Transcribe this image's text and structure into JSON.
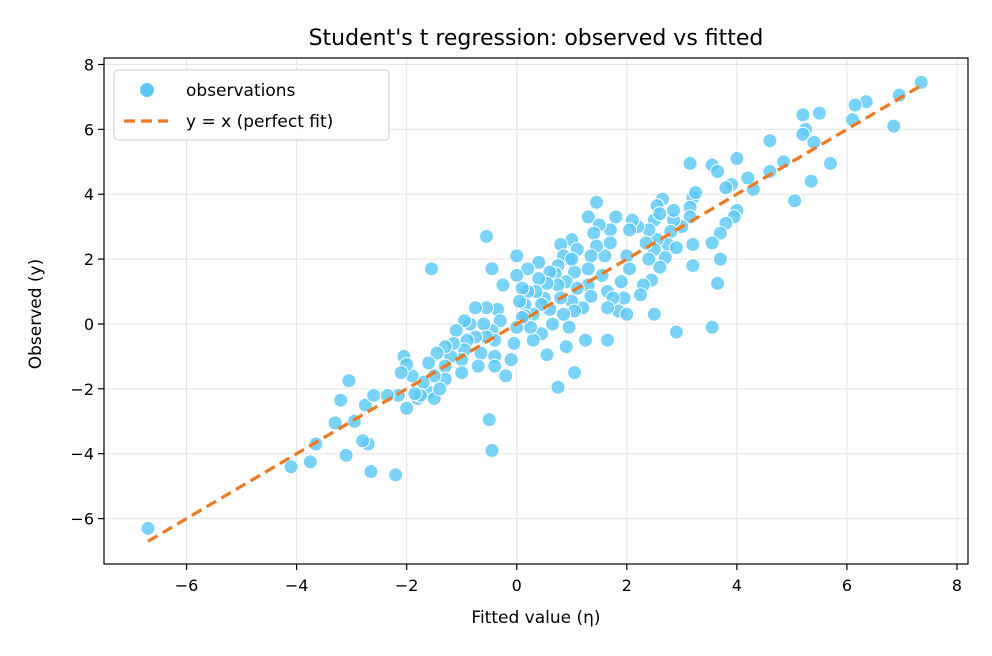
{
  "colors": {
    "points": "#5bc8f5",
    "point_edge": "#ffffff",
    "line": "#f07820",
    "grid": "#e4e4e4",
    "axis": "#000000"
  },
  "chart_data": {
    "type": "scatter",
    "title": "Student's t regression: observed vs fitted",
    "xlabel": "Fitted value (η)",
    "ylabel": "Observed (y)",
    "xlim": [
      -7.5,
      8.2
    ],
    "ylim": [
      -7.4,
      8.2
    ],
    "xticks": [
      -6,
      -4,
      -2,
      0,
      2,
      4,
      6,
      8
    ],
    "yticks": [
      -6,
      -4,
      -2,
      0,
      2,
      4,
      6,
      8
    ],
    "xtick_labels": [
      "−6",
      "−4",
      "−2",
      "0",
      "2",
      "4",
      "6",
      "8"
    ],
    "ytick_labels": [
      "−6",
      "−4",
      "−2",
      "0",
      "2",
      "4",
      "6",
      "8"
    ],
    "grid": true,
    "legend_position": "top-left",
    "series": [
      {
        "name": "observations",
        "kind": "scatter",
        "points": [
          [
            -6.7,
            -6.3
          ],
          [
            7.35,
            7.45
          ],
          [
            6.95,
            7.05
          ],
          [
            6.35,
            6.85
          ],
          [
            6.15,
            6.75
          ],
          [
            6.1,
            6.3
          ],
          [
            6.85,
            6.1
          ],
          [
            5.5,
            6.5
          ],
          [
            5.2,
            6.45
          ],
          [
            5.25,
            6.0
          ],
          [
            5.2,
            5.85
          ],
          [
            5.4,
            5.6
          ],
          [
            4.6,
            5.65
          ],
          [
            5.7,
            4.95
          ],
          [
            4.85,
            5.0
          ],
          [
            5.35,
            4.4
          ],
          [
            5.05,
            3.8
          ],
          [
            4.0,
            5.1
          ],
          [
            4.6,
            4.7
          ],
          [
            4.3,
            4.15
          ],
          [
            4.2,
            4.5
          ],
          [
            3.9,
            4.3
          ],
          [
            3.8,
            4.2
          ],
          [
            4.0,
            3.5
          ],
          [
            3.95,
            3.3
          ],
          [
            3.8,
            3.1
          ],
          [
            3.7,
            2.8
          ],
          [
            3.55,
            2.5
          ],
          [
            3.7,
            2.0
          ],
          [
            3.65,
            1.25
          ],
          [
            3.55,
            -0.1
          ],
          [
            3.55,
            4.9
          ],
          [
            3.65,
            4.7
          ],
          [
            3.15,
            4.95
          ],
          [
            3.2,
            3.9
          ],
          [
            3.25,
            4.05
          ],
          [
            3.15,
            3.6
          ],
          [
            3.15,
            3.3
          ],
          [
            3.2,
            2.45
          ],
          [
            3.2,
            1.8
          ],
          [
            3.0,
            3.0
          ],
          [
            2.85,
            3.2
          ],
          [
            2.85,
            3.5
          ],
          [
            2.8,
            2.85
          ],
          [
            2.75,
            2.45
          ],
          [
            2.7,
            2.05
          ],
          [
            2.9,
            2.35
          ],
          [
            2.9,
            -0.25
          ],
          [
            2.65,
            3.85
          ],
          [
            2.55,
            3.65
          ],
          [
            2.5,
            3.2
          ],
          [
            2.55,
            2.6
          ],
          [
            2.5,
            2.3
          ],
          [
            2.6,
            1.75
          ],
          [
            2.45,
            1.35
          ],
          [
            2.4,
            2.9
          ],
          [
            2.35,
            2.5
          ],
          [
            2.3,
            1.2
          ],
          [
            2.25,
            0.9
          ],
          [
            2.5,
            0.3
          ],
          [
            2.2,
            3.0
          ],
          [
            2.1,
            3.2
          ],
          [
            2.05,
            2.9
          ],
          [
            2.0,
            2.1
          ],
          [
            2.05,
            1.7
          ],
          [
            1.9,
            1.3
          ],
          [
            1.95,
            0.8
          ],
          [
            1.85,
            0.4
          ],
          [
            2.0,
            0.3
          ],
          [
            1.8,
            3.3
          ],
          [
            1.7,
            2.9
          ],
          [
            1.7,
            2.5
          ],
          [
            1.6,
            2.1
          ],
          [
            1.55,
            1.5
          ],
          [
            1.65,
            1.0
          ],
          [
            1.75,
            0.8
          ],
          [
            1.65,
            0.5
          ],
          [
            1.65,
            -0.5
          ],
          [
            1.45,
            3.75
          ],
          [
            1.3,
            3.3
          ],
          [
            1.5,
            3.05
          ],
          [
            1.4,
            2.8
          ],
          [
            1.45,
            2.4
          ],
          [
            1.35,
            2.1
          ],
          [
            1.3,
            1.7
          ],
          [
            1.3,
            1.2
          ],
          [
            1.35,
            0.85
          ],
          [
            1.2,
            0.5
          ],
          [
            1.25,
            -0.5
          ],
          [
            1.0,
            2.6
          ],
          [
            1.1,
            2.3
          ],
          [
            0.95,
            2.0
          ],
          [
            1.05,
            1.6
          ],
          [
            0.9,
            1.3
          ],
          [
            1.1,
            1.1
          ],
          [
            1.0,
            0.7
          ],
          [
            1.05,
            0.4
          ],
          [
            0.95,
            -0.1
          ],
          [
            1.05,
            -1.5
          ],
          [
            0.8,
            2.45
          ],
          [
            0.85,
            2.1
          ],
          [
            0.75,
            1.8
          ],
          [
            0.7,
            1.55
          ],
          [
            0.75,
            1.2
          ],
          [
            0.8,
            0.8
          ],
          [
            0.85,
            0.3
          ],
          [
            0.9,
            -0.7
          ],
          [
            0.75,
            -1.95
          ],
          [
            0.6,
            1.6
          ],
          [
            0.55,
            1.25
          ],
          [
            0.5,
            0.8
          ],
          [
            0.6,
            0.45
          ],
          [
            0.65,
            0.0
          ],
          [
            0.4,
            1.9
          ],
          [
            0.4,
            1.4
          ],
          [
            0.35,
            1.0
          ],
          [
            0.45,
            0.6
          ],
          [
            0.3,
            0.3
          ],
          [
            0.45,
            -0.3
          ],
          [
            0.55,
            -0.95
          ],
          [
            0.3,
            -0.5
          ],
          [
            0.2,
            1.0
          ],
          [
            0.15,
            0.6
          ],
          [
            0.15,
            0.25
          ],
          [
            0.25,
            -0.1
          ],
          [
            0.2,
            1.7
          ],
          [
            0.0,
            2.1
          ],
          [
            0.0,
            1.5
          ],
          [
            0.1,
            1.1
          ],
          [
            0.05,
            0.7
          ],
          [
            0.1,
            0.2
          ],
          [
            0.0,
            -0.1
          ],
          [
            -0.05,
            -0.6
          ],
          [
            -0.1,
            -1.1
          ],
          [
            -0.2,
            -1.6
          ],
          [
            -0.25,
            1.2
          ],
          [
            -0.35,
            0.45
          ],
          [
            -0.3,
            0.1
          ],
          [
            -0.45,
            -0.2
          ],
          [
            -0.4,
            -0.5
          ],
          [
            -0.4,
            -1.0
          ],
          [
            -0.4,
            -1.3
          ],
          [
            -0.55,
            2.7
          ],
          [
            -0.45,
            1.7
          ],
          [
            -0.55,
            0.5
          ],
          [
            -0.6,
            0.0
          ],
          [
            -0.55,
            -0.4
          ],
          [
            -0.65,
            -0.9
          ],
          [
            -0.75,
            -0.4
          ],
          [
            -0.7,
            -1.3
          ],
          [
            -0.75,
            0.5
          ],
          [
            -0.85,
            0.0
          ],
          [
            -0.95,
            0.1
          ],
          [
            -0.9,
            -0.5
          ],
          [
            -0.95,
            -0.8
          ],
          [
            -1.0,
            -1.1
          ],
          [
            -1.0,
            -1.5
          ],
          [
            -1.1,
            -0.2
          ],
          [
            -1.15,
            -0.6
          ],
          [
            -1.2,
            -1.0
          ],
          [
            -1.3,
            -1.3
          ],
          [
            -1.3,
            -0.7
          ],
          [
            -1.3,
            -1.7
          ],
          [
            -1.45,
            -0.9
          ],
          [
            -1.5,
            -1.6
          ],
          [
            -1.6,
            -1.2
          ],
          [
            -1.6,
            -2.1
          ],
          [
            -1.7,
            -1.8
          ],
          [
            -1.5,
            -2.3
          ],
          [
            -1.55,
            1.7
          ],
          [
            -1.4,
            -2.0
          ],
          [
            -1.8,
            -2.3
          ],
          [
            -1.75,
            -2.2
          ],
          [
            -1.9,
            -1.6
          ],
          [
            -1.85,
            -2.15
          ],
          [
            -2.0,
            -2.6
          ],
          [
            -2.05,
            -1.0
          ],
          [
            -2.0,
            -1.25
          ],
          [
            -2.1,
            -1.5
          ],
          [
            -2.15,
            -2.2
          ],
          [
            -2.2,
            -4.65
          ],
          [
            -2.35,
            -2.2
          ],
          [
            -2.65,
            -4.55
          ],
          [
            -2.7,
            -3.7
          ],
          [
            -2.8,
            -3.6
          ],
          [
            -2.75,
            -2.5
          ],
          [
            -2.6,
            -2.2
          ],
          [
            -2.95,
            -3.0
          ],
          [
            -3.1,
            -4.05
          ],
          [
            -3.05,
            -1.75
          ],
          [
            -3.2,
            -2.35
          ],
          [
            -3.3,
            -3.05
          ],
          [
            -3.65,
            -3.7
          ],
          [
            -3.75,
            -4.25
          ],
          [
            -4.1,
            -4.4
          ],
          [
            -0.5,
            -2.95
          ],
          [
            -0.45,
            -3.9
          ],
          [
            1.0,
            2.0
          ],
          [
            2.4,
            2.0
          ],
          [
            2.6,
            3.4
          ]
        ]
      },
      {
        "name": "y = x (perfect fit)",
        "kind": "line",
        "x": [
          -6.7,
          7.4
        ],
        "y": [
          -6.7,
          7.4
        ]
      }
    ]
  }
}
